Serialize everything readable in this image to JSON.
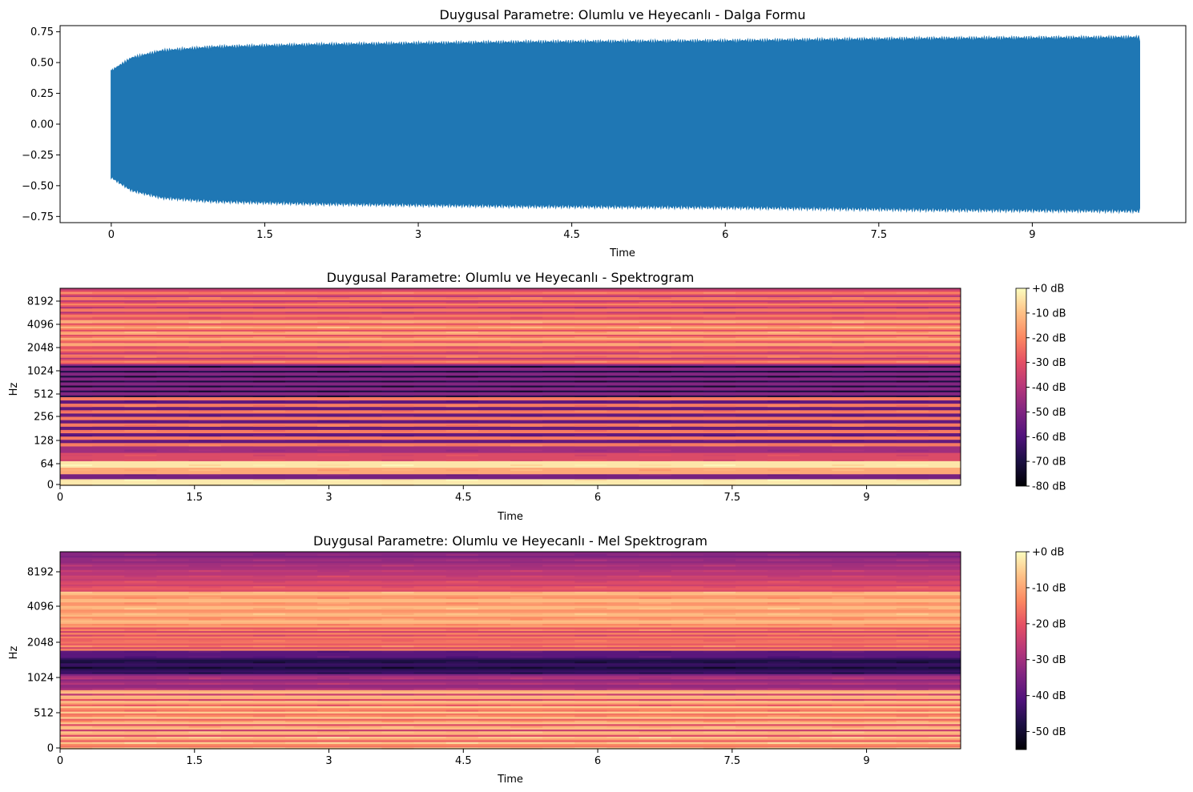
{
  "chart_data": [
    {
      "type": "line",
      "title": "Duygusal Parametre: Olumlu ve Heyecanlı - Dalga Formu",
      "xlabel": "Time",
      "ylabel": "",
      "xlim": [
        -0.5,
        10.5
      ],
      "ylim": [
        -0.8,
        0.8
      ],
      "xticks": [
        0,
        1.5,
        3,
        4.5,
        6,
        7.5,
        9
      ],
      "xtick_labels": [
        "0",
        "1.5",
        "3",
        "4.5",
        "6",
        "7.5",
        "9"
      ],
      "yticks": [
        0.75,
        0.5,
        0.25,
        0.0,
        -0.25,
        -0.5,
        -0.75
      ],
      "ytick_labels": [
        "0.75",
        "0.50",
        "0.25",
        "0.00",
        "−0.25",
        "−0.50",
        "−0.75"
      ],
      "series": [
        {
          "color": "#1f77b4",
          "envelope_time": [
            0,
            0.05,
            0.2,
            0.5,
            1.0,
            2.0,
            4.0,
            6.0,
            8.0,
            10.05
          ],
          "envelope_amplitude": [
            0.44,
            0.47,
            0.55,
            0.61,
            0.64,
            0.66,
            0.68,
            0.69,
            0.71,
            0.72
          ],
          "duration": 10.05
        }
      ]
    },
    {
      "type": "heatmap",
      "title": "Duygusal Parametre: Olumlu ve Heyecanlı - Spektrogram",
      "xlabel": "Time",
      "ylabel": "Hz",
      "xlim": [
        0,
        10.05
      ],
      "xticks": [
        0,
        1.5,
        3,
        4.5,
        6,
        7.5,
        9
      ],
      "xtick_labels": [
        "0",
        "1.5",
        "3",
        "4.5",
        "6",
        "7.5",
        "9"
      ],
      "yscale": "log",
      "yticks": [
        0,
        64,
        128,
        256,
        512,
        1024,
        2048,
        4096,
        8192
      ],
      "ytick_labels": [
        "0",
        "64",
        "128",
        "256",
        "512",
        "1024",
        "2048",
        "4096",
        "8192"
      ],
      "colormap": "magma",
      "colorbar": {
        "range": [
          -80,
          0
        ],
        "ticks": [
          0,
          -10,
          -20,
          -30,
          -40,
          -50,
          -60,
          -70,
          -80
        ],
        "tick_labels": [
          "+0 dB",
          "-10 dB",
          "-20 dB",
          "-30 dB",
          "-40 dB",
          "-50 dB",
          "-60 dB",
          "-70 dB",
          "-80 dB"
        ]
      }
    },
    {
      "type": "heatmap",
      "title": "Duygusal Parametre: Olumlu ve Heyecanlı - Mel Spektrogram",
      "xlabel": "Time",
      "ylabel": "Hz",
      "xlim": [
        0,
        10.05
      ],
      "xticks": [
        0,
        1.5,
        3,
        4.5,
        6,
        7.5,
        9
      ],
      "xtick_labels": [
        "0",
        "1.5",
        "3",
        "4.5",
        "6",
        "7.5",
        "9"
      ],
      "yscale": "mel",
      "yticks": [
        0,
        512,
        1024,
        2048,
        4096,
        8192
      ],
      "ytick_labels": [
        "0",
        "512",
        "1024",
        "2048",
        "4096",
        "8192"
      ],
      "colormap": "magma",
      "colorbar": {
        "range": [
          -55,
          0
        ],
        "ticks": [
          0,
          -10,
          -20,
          -30,
          -40,
          -50
        ],
        "tick_labels": [
          "+0 dB",
          "-10 dB",
          "-20 dB",
          "-30 dB",
          "-40 dB",
          "-50 dB"
        ]
      }
    }
  ]
}
